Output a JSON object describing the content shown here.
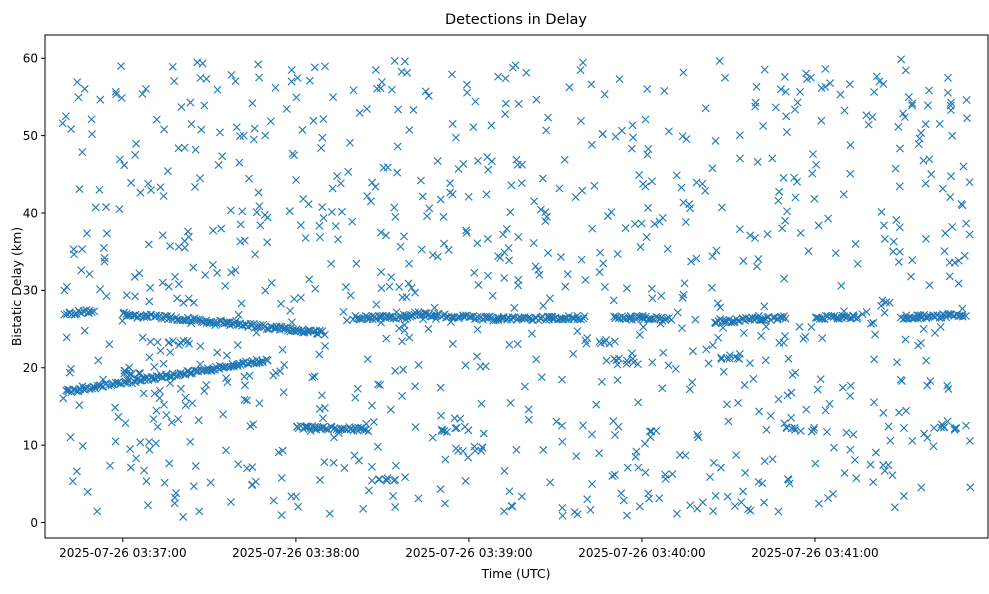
{
  "chart_data": {
    "type": "scatter",
    "title": "Detections in Delay",
    "xlabel": "Time (UTC)",
    "ylabel": "Bistatic Delay (km)",
    "x_range": [
      "2025-07-26 03:36:39",
      "2025-07-26 03:41:54"
    ],
    "xlim": [
      "2025-07-26 03:36:33",
      "2025-07-26 03:42:00"
    ],
    "ylim": [
      -2,
      63
    ],
    "x_ticks": [
      "2025-07-26 03:37:00",
      "2025-07-26 03:38:00",
      "2025-07-26 03:39:00",
      "2025-07-26 03:40:00",
      "2025-07-26 03:41:00"
    ],
    "y_ticks": [
      "0",
      "10",
      "20",
      "30",
      "40",
      "50",
      "60"
    ],
    "marker": "x",
    "grid": false,
    "series": [
      {
        "color": "#1f77b4",
        "tracks": [
          {
            "from": [
              "2025-07-26 03:36:40",
              27.0
            ],
            "to": [
              "2025-07-26 03:36:50",
              27.3
            ]
          },
          {
            "from": [
              "2025-07-26 03:36:40",
              16.9
            ],
            "to": [
              "2025-07-26 03:37:50",
              21.0
            ]
          },
          {
            "from": [
              "2025-07-26 03:37:00",
              27.0
            ],
            "to": [
              "2025-07-26 03:37:30",
              26.0
            ]
          },
          {
            "from": [
              "2025-07-26 03:37:30",
              26.0
            ],
            "to": [
              "2025-07-26 03:38:10",
              24.5
            ]
          },
          {
            "from": [
              "2025-07-26 03:38:00",
              12.3
            ],
            "to": [
              "2025-07-26 03:38:25",
              12.0
            ]
          },
          {
            "from": [
              "2025-07-26 03:38:20",
              26.5
            ],
            "to": [
              "2025-07-26 03:38:40",
              26.5
            ]
          },
          {
            "from": [
              "2025-07-26 03:38:40",
              27.0
            ],
            "to": [
              "2025-07-26 03:39:10",
              26.3
            ]
          },
          {
            "from": [
              "2025-07-26 03:39:10",
              26.3
            ],
            "to": [
              "2025-07-26 03:39:40",
              26.5
            ]
          },
          {
            "from": [
              "2025-07-26 03:39:50",
              26.5
            ],
            "to": [
              "2025-07-26 03:40:10",
              26.3
            ]
          },
          {
            "from": [
              "2025-07-26 03:40:25",
              26.0
            ],
            "to": [
              "2025-07-26 03:40:50",
              26.5
            ]
          },
          {
            "from": [
              "2025-07-26 03:41:00",
              26.5
            ],
            "to": [
              "2025-07-26 03:41:15",
              26.5
            ]
          },
          {
            "from": [
              "2025-07-26 03:41:30",
              26.5
            ],
            "to": [
              "2025-07-26 03:41:52",
              26.8
            ]
          }
        ],
        "clusters": [
          {
            "at": [
              "2025-07-26 03:37:20",
              23.3
            ]
          },
          {
            "at": [
              "2025-07-26 03:39:45",
              23.5
            ]
          },
          {
            "at": [
              "2025-07-26 03:39:55",
              20.8
            ]
          },
          {
            "at": [
              "2025-07-26 03:40:30",
              21.5
            ]
          },
          {
            "at": [
              "2025-07-26 03:40:55",
              12.0
            ]
          },
          {
            "at": [
              "2025-07-26 03:41:45",
              12.3
            ]
          },
          {
            "at": [
              "2025-07-26 03:38:55",
              12.0
            ]
          },
          {
            "at": [
              "2025-07-26 03:37:05",
              19.3
            ]
          },
          {
            "at": [
              "2025-07-26 03:38:30",
              5.5
            ]
          },
          {
            "at": [
              "2025-07-26 03:39:00",
              9.5
            ]
          }
        ],
        "scatter_density": "uniform over the x_range and 0.7–59.9 km"
      }
    ]
  }
}
